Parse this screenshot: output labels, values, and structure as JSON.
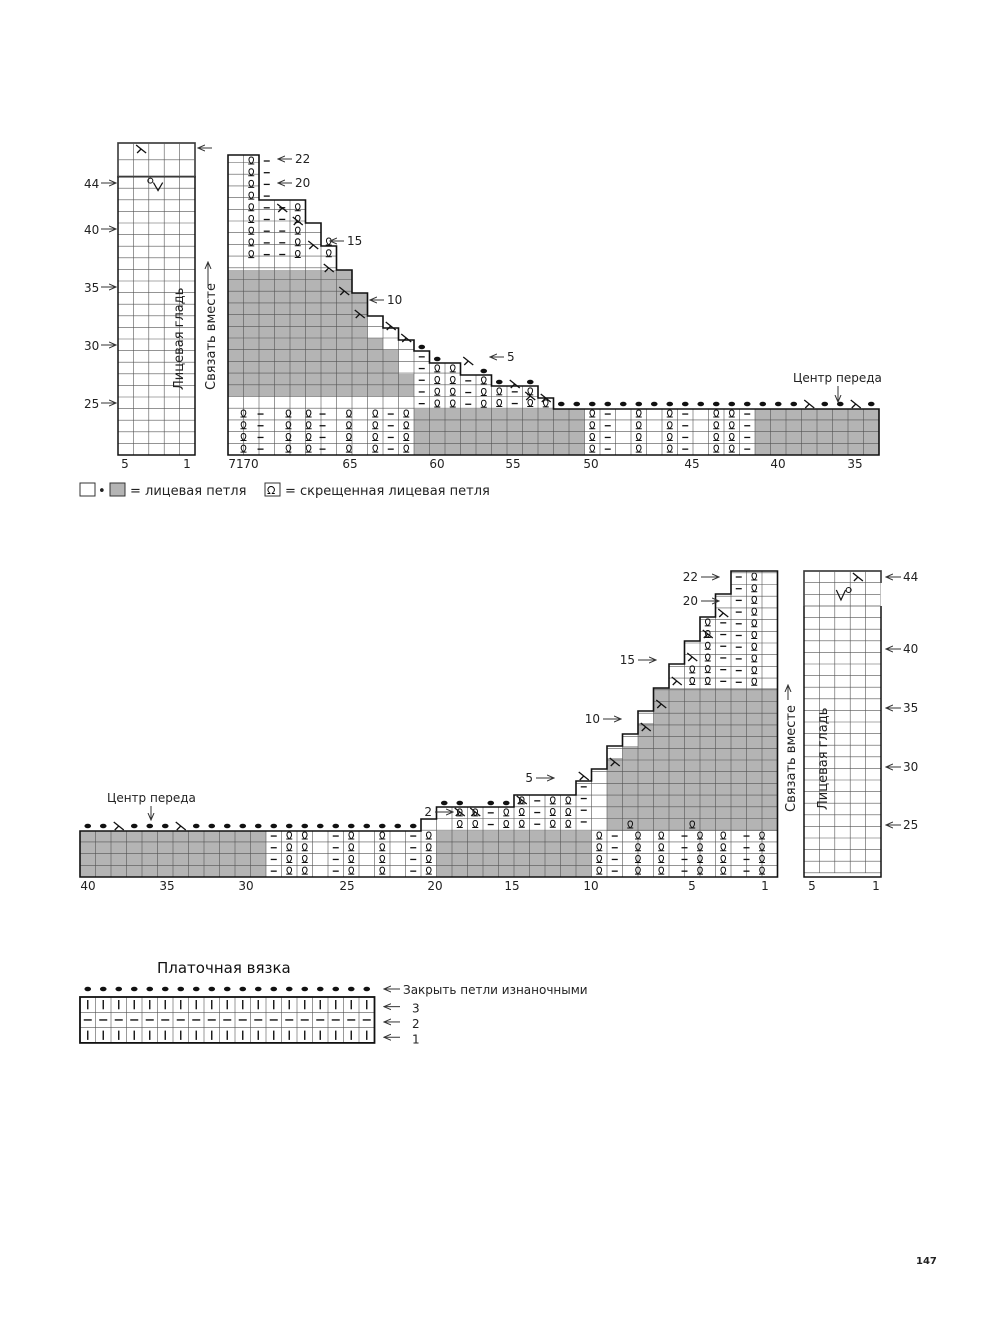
{
  "chart1": {
    "left_chart": {
      "row_labels": [
        {
          "text": "44",
          "row": 44
        },
        {
          "text": "40",
          "row": 40
        },
        {
          "text": "35",
          "row": 35
        },
        {
          "text": "30",
          "row": 30
        },
        {
          "text": "25",
          "row": 25
        }
      ],
      "col_labels": [
        "5",
        "1"
      ],
      "side_text_1": "Лицевая гладь",
      "side_text_2": "Связать вместе"
    },
    "main_chart": {
      "row_labels": [
        "22",
        "20",
        "15",
        "10",
        "5"
      ],
      "col_labels": [
        "71",
        "70",
        "65",
        "60",
        "55",
        "50",
        "45",
        "40",
        "35"
      ],
      "center_label": "Центр переда"
    }
  },
  "legend": {
    "knit_text": "= лицевая петля",
    "twisted_text": "= скрещенная лицевая петля",
    "dot_symbol": "•",
    "twisted_symbol": "ᘯ"
  },
  "chart2": {
    "main_chart": {
      "row_labels": [
        "22",
        "20",
        "15",
        "10",
        "5",
        "2"
      ],
      "col_labels": [
        "40",
        "35",
        "30",
        "25",
        "20",
        "15",
        "10",
        "5",
        "1"
      ],
      "center_label": "Центр переда"
    },
    "right_chart": {
      "row_labels": [
        "44",
        "40",
        "35",
        "30",
        "25"
      ],
      "col_labels": [
        "5",
        "1"
      ],
      "side_text_1": "Связать вместе",
      "side_text_2": "Лицевая гладь"
    }
  },
  "garter": {
    "title": "Платочная вязка",
    "bind_off": "Закрыть петли изнаночными",
    "rows": [
      "3",
      "2",
      "1"
    ]
  },
  "page_number": "147"
}
